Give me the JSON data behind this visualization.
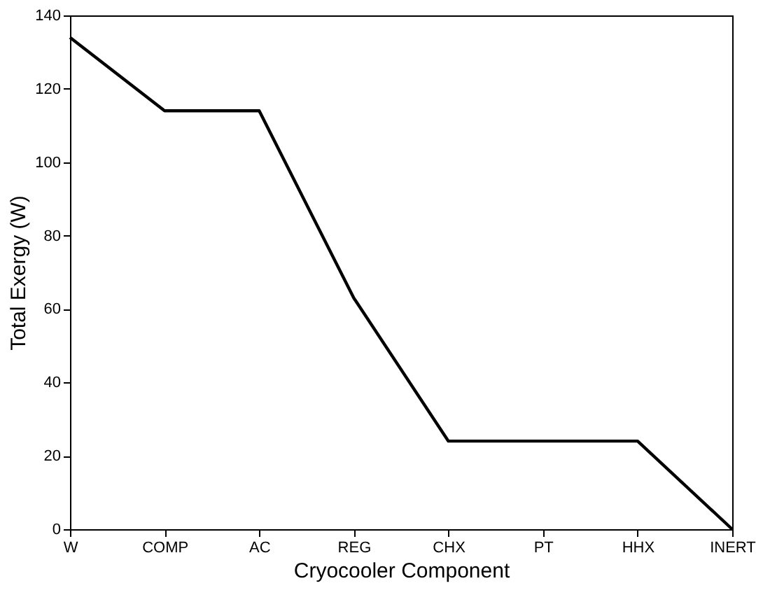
{
  "chart_data": {
    "type": "line",
    "xlabel": "Cryocooler Component",
    "ylabel": "Total Exergy  (W)",
    "categories": [
      "W",
      "COMP",
      "AC",
      "REG",
      "CHX",
      "PT",
      "HHX",
      "INERT"
    ],
    "series": [
      {
        "color": "#000000",
        "values": [
          134,
          114,
          114,
          63,
          24,
          24,
          24,
          0
        ]
      }
    ],
    "ylim": [
      0,
      140
    ],
    "yticks": [
      0,
      20,
      40,
      60,
      80,
      100,
      120,
      140
    ],
    "grid": false,
    "legend": false,
    "marker": "none",
    "line_style": "solid"
  }
}
